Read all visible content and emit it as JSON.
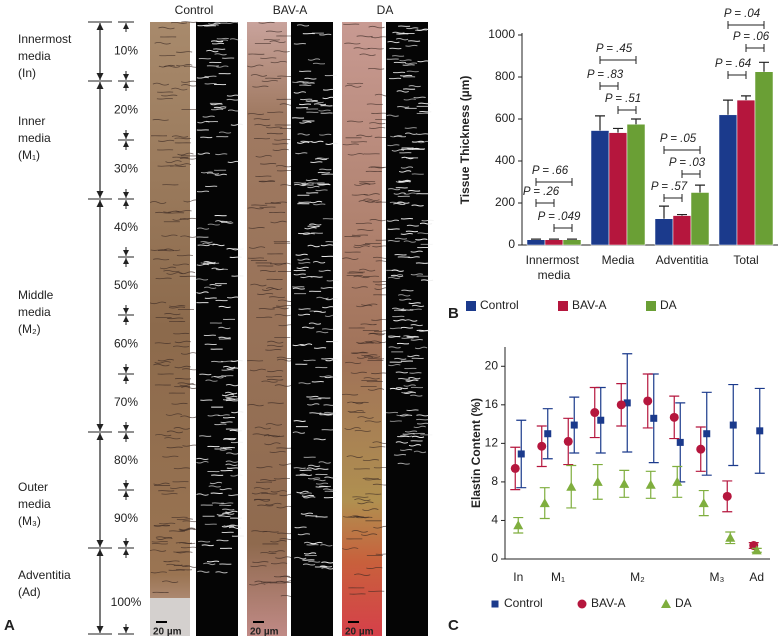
{
  "panel_labels": [
    "A",
    "B",
    "C"
  ],
  "micrographs": {
    "groups": [
      "Control",
      "BAV-A",
      "DA"
    ],
    "scale_bar": "20 µm",
    "layers": [
      {
        "lines": [
          "Innermost",
          "media",
          "(In)"
        ]
      },
      {
        "lines": [
          "Inner",
          "media",
          "(M₁)"
        ]
      },
      {
        "lines": [
          "Middle",
          "media",
          "(M₂)"
        ]
      },
      {
        "lines": [
          "Outer",
          "media",
          "(M₃)"
        ]
      },
      {
        "lines": [
          "Adventitia",
          "(Ad)"
        ]
      }
    ],
    "percentages": [
      "10%",
      "20%",
      "30%",
      "40%",
      "50%",
      "60%",
      "70%",
      "80%",
      "90%",
      "100%"
    ]
  },
  "chart_data": [
    {
      "type": "bar",
      "ylabel": "Tissue Thickness (µm)",
      "categories": [
        "Innermost media",
        "Media",
        "Adventitia",
        "Total"
      ],
      "series": [
        {
          "name": "Control",
          "color": "#1b3a8c",
          "values": [
            25,
            545,
            125,
            620
          ],
          "errors": [
            3,
            70,
            60,
            70
          ]
        },
        {
          "name": "BAV-A",
          "color": "#b5163d",
          "values": [
            25,
            535,
            140,
            690
          ],
          "errors": [
            3,
            20,
            5,
            20
          ]
        },
        {
          "name": "DA",
          "color": "#6a9f35",
          "values": [
            25,
            575,
            250,
            825
          ],
          "errors": [
            3,
            25,
            35,
            45
          ]
        }
      ],
      "ylim": [
        0,
        1000
      ],
      "yticks": [
        0,
        200,
        400,
        600,
        800,
        1000
      ],
      "annotations": [
        [
          "P = .66",
          "P = .26",
          "P = .049"
        ],
        [
          "P = .45",
          "P = .83",
          "P = .51"
        ],
        [
          "P = .05",
          "P = .03",
          "P = .57"
        ],
        [
          "P = .04",
          "P = .06",
          "P = .64"
        ]
      ]
    },
    {
      "type": "scatter",
      "ylabel": "Elastin Content (%)",
      "x": [
        1,
        2,
        3,
        4,
        5,
        6,
        7,
        8,
        9,
        10
      ],
      "xlim": [
        0.5,
        10.5
      ],
      "xticks": [
        {
          "value": 1,
          "label": "In"
        },
        {
          "value": 2.5,
          "label": "M₁"
        },
        {
          "value": 5.5,
          "label": "M₂"
        },
        {
          "value": 8.5,
          "label": "M₃"
        },
        {
          "value": 10,
          "label": "Ad"
        }
      ],
      "ylim": [
        0,
        22
      ],
      "yticks": [
        0,
        4,
        8,
        12,
        16,
        20
      ],
      "series": [
        {
          "name": "Control",
          "color": "#1b3a8c",
          "marker": "square",
          "values": [
            10.9,
            13.0,
            13.9,
            14.4,
            16.2,
            14.6,
            12.1,
            13.0,
            13.9,
            13.3
          ],
          "errors": [
            3.5,
            2.6,
            2.9,
            3.4,
            5.1,
            4.6,
            4.1,
            4.3,
            4.2,
            4.4
          ]
        },
        {
          "name": "BAV-A",
          "color": "#b5163d",
          "marker": "circle",
          "values": [
            9.4,
            11.7,
            12.2,
            15.2,
            16.0,
            16.4,
            14.7,
            11.4,
            6.5,
            1.4
          ],
          "errors": [
            2.2,
            2.1,
            2.4,
            2.6,
            2.2,
            2.8,
            2.2,
            2.3,
            1.6,
            0.3
          ]
        },
        {
          "name": "DA",
          "color": "#7fae3e",
          "marker": "triangle",
          "values": [
            3.5,
            5.8,
            7.5,
            8.0,
            7.8,
            7.7,
            8.0,
            5.8,
            2.2,
            0.9
          ],
          "errors": [
            0.8,
            1.6,
            2.2,
            1.8,
            1.4,
            1.4,
            1.6,
            1.3,
            0.6,
            0.2
          ]
        }
      ]
    }
  ]
}
